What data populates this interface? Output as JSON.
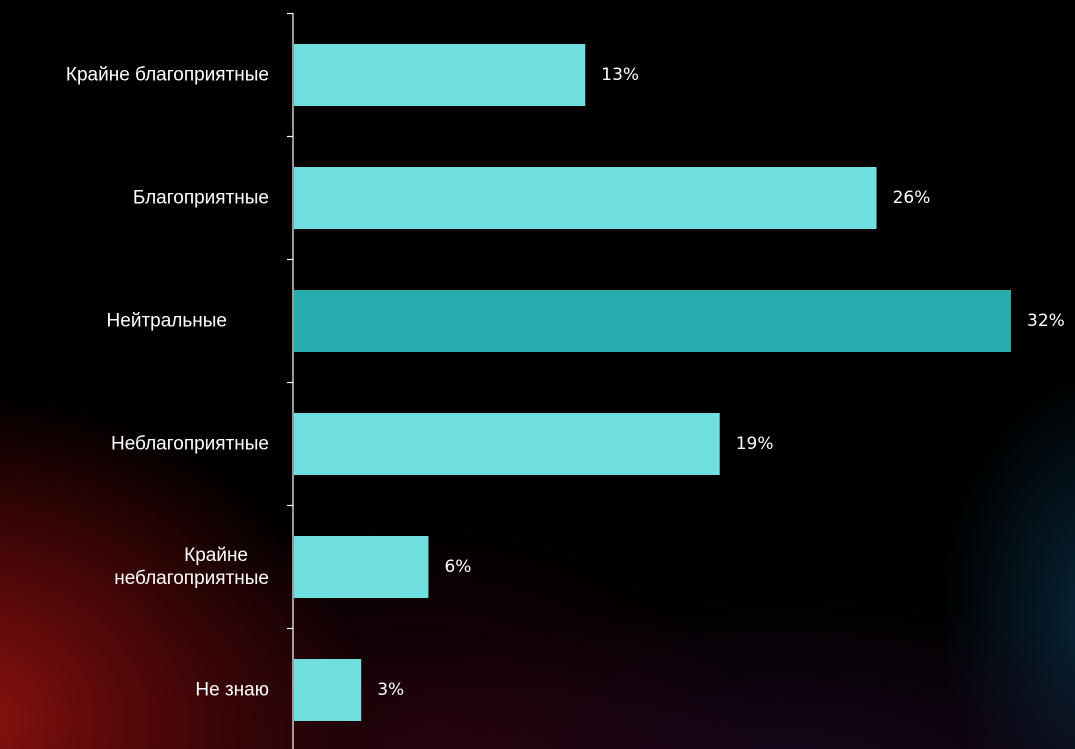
{
  "colors": {
    "bar": "#6fe0df",
    "bar_highlight": "#28adac",
    "text": "#ffffff",
    "axis": "#ffffff",
    "background": "#000000"
  },
  "chart_data": {
    "type": "bar",
    "orientation": "horizontal",
    "title": "",
    "xlabel": "",
    "ylabel": "",
    "categories": [
      "Крайне благоприятные",
      "Благоприятные",
      "Нейтральные",
      "Неблагоприятные",
      "Крайне неблагоприятные",
      "Не знаю"
    ],
    "category_lines": [
      [
        "Крайне благоприятные"
      ],
      [
        "Благоприятные"
      ],
      [
        "Нейтральные"
      ],
      [
        "Неблагоприятные"
      ],
      [
        "Крайне",
        "неблагоприятные"
      ],
      [
        "Не знаю"
      ]
    ],
    "values": [
      13,
      26,
      32,
      19,
      6,
      3
    ],
    "value_labels": [
      "13%",
      "26%",
      "32%",
      "19%",
      "6%",
      "3%"
    ],
    "highlight_index": 2,
    "xlim": [
      0,
      32
    ],
    "grid": false,
    "legend": "none"
  }
}
